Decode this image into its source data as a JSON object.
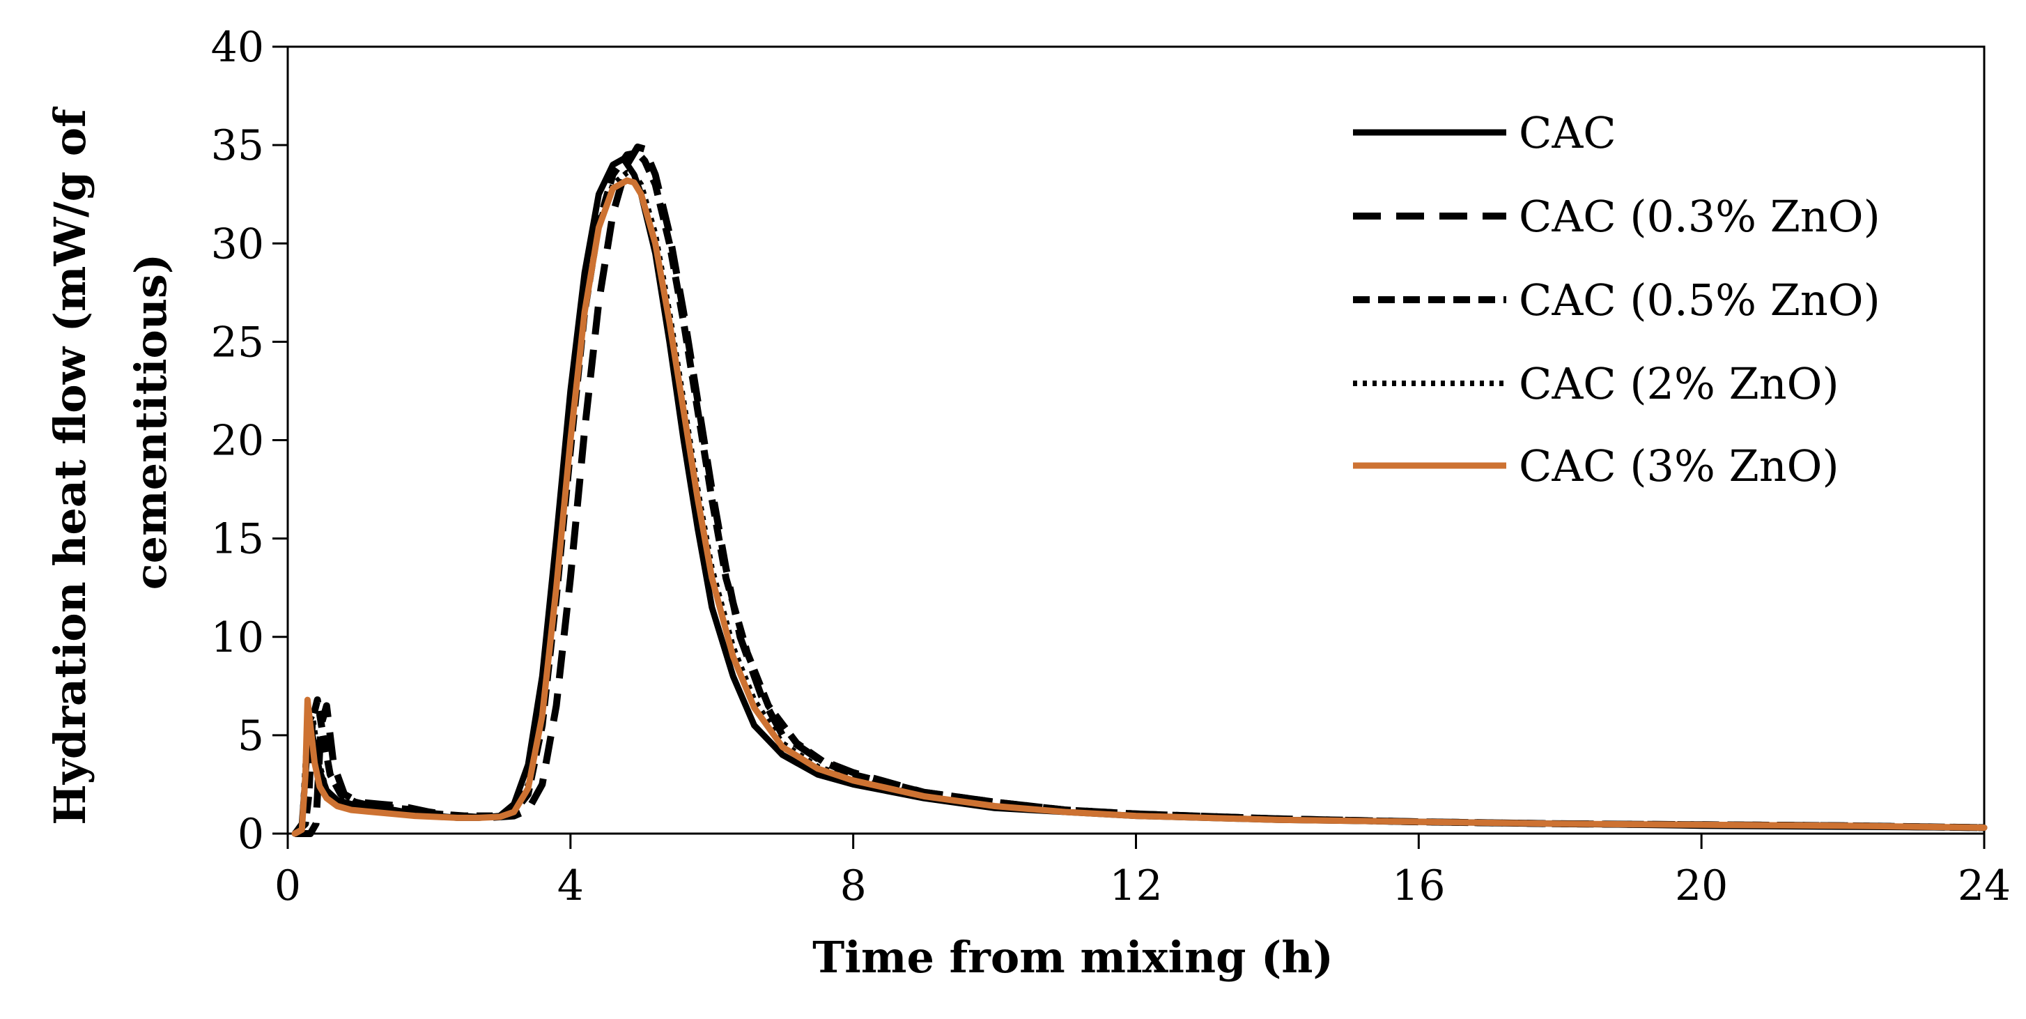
{
  "chart_data": {
    "type": "line",
    "title": "",
    "xlabel": "Time from mixing (h)",
    "ylabel_lines": [
      "Hydration heat flow (mW/g of",
      "cementitious)"
    ],
    "xlim": [
      0,
      24
    ],
    "ylim": [
      0,
      40
    ],
    "xticks": [
      "0",
      "4",
      "8",
      "12",
      "16",
      "20",
      "24"
    ],
    "yticks": [
      "0",
      "5",
      "10",
      "15",
      "20",
      "25",
      "30",
      "35",
      "40"
    ],
    "grid": false,
    "legend_position": "top-right",
    "series": [
      {
        "name": "CAC",
        "color": "#000000",
        "style": "solid",
        "x": [
          0.1,
          0.2,
          0.28,
          0.35,
          0.45,
          0.55,
          0.7,
          0.9,
          1.2,
          1.5,
          1.8,
          2.1,
          2.4,
          2.7,
          3.0,
          3.2,
          3.4,
          3.6,
          3.8,
          4.0,
          4.2,
          4.4,
          4.6,
          4.75,
          4.9,
          5.0,
          5.2,
          5.4,
          5.6,
          5.8,
          6.0,
          6.3,
          6.6,
          7.0,
          7.5,
          8.0,
          9.0,
          10,
          11,
          12,
          14,
          16,
          18,
          20,
          22,
          24
        ],
        "y": [
          0,
          0.5,
          4.3,
          5.0,
          3.2,
          2.2,
          1.7,
          1.5,
          1.3,
          1.2,
          1.0,
          0.9,
          0.8,
          0.8,
          0.9,
          1.5,
          3.5,
          8.0,
          15.0,
          22.5,
          28.5,
          32.5,
          34.0,
          34.3,
          33.5,
          32.5,
          29.5,
          25.0,
          20.0,
          15.5,
          11.5,
          8.0,
          5.5,
          4.0,
          3.0,
          2.5,
          1.8,
          1.3,
          1.1,
          0.9,
          0.7,
          0.6,
          0.5,
          0.4,
          0.35,
          0.3
        ]
      },
      {
        "name": "CAC (0.3% ZnO)",
        "color": "#000000",
        "style": "longdash",
        "x": [
          0.1,
          0.25,
          0.32,
          0.4,
          0.47,
          0.55,
          0.65,
          0.8,
          1.0,
          1.3,
          1.6,
          2.0,
          2.4,
          2.8,
          3.2,
          3.4,
          3.6,
          3.8,
          4.0,
          4.2,
          4.4,
          4.6,
          4.8,
          4.95,
          5.05,
          5.2,
          5.4,
          5.6,
          5.8,
          6.0,
          6.2,
          6.4,
          6.7,
          7.0,
          7.5,
          8.0,
          9.0,
          10,
          11,
          12,
          14,
          16,
          18,
          20,
          22,
          24
        ],
        "y": [
          0,
          0,
          0,
          0.5,
          5.5,
          6.5,
          3.5,
          2.0,
          1.6,
          1.5,
          1.4,
          1.1,
          0.9,
          0.8,
          0.9,
          1.2,
          2.5,
          6.5,
          13.0,
          20.5,
          27.0,
          31.5,
          34.0,
          34.9,
          34.8,
          33.5,
          30.5,
          26.5,
          22.0,
          17.5,
          13.5,
          10.0,
          7.0,
          5.0,
          3.8,
          3.1,
          2.1,
          1.6,
          1.2,
          1.0,
          0.75,
          0.6,
          0.5,
          0.45,
          0.4,
          0.3
        ]
      },
      {
        "name": "CAC (0.5% ZnO)",
        "color": "#000000",
        "style": "shortdash",
        "x": [
          0.1,
          0.25,
          0.3,
          0.35,
          0.42,
          0.5,
          0.6,
          0.75,
          0.95,
          1.2,
          1.5,
          1.8,
          2.1,
          2.5,
          2.9,
          3.2,
          3.4,
          3.6,
          3.8,
          4.0,
          4.2,
          4.4,
          4.6,
          4.8,
          4.95,
          5.05,
          5.2,
          5.4,
          5.6,
          5.8,
          6.0,
          6.2,
          6.5,
          6.8,
          7.2,
          7.6,
          8.0,
          9.0,
          10,
          11,
          12,
          14,
          16,
          18,
          20,
          22,
          24
        ],
        "y": [
          0,
          0.5,
          2.0,
          5.8,
          6.8,
          5.0,
          3.0,
          2.0,
          1.6,
          1.4,
          1.3,
          1.2,
          1.0,
          0.9,
          0.9,
          1.1,
          2.0,
          5.5,
          12.0,
          19.5,
          26.5,
          31.0,
          33.5,
          34.5,
          34.6,
          34.2,
          33.0,
          30.0,
          26.0,
          21.5,
          17.0,
          13.0,
          9.2,
          6.5,
          4.6,
          3.6,
          3.0,
          2.1,
          1.6,
          1.2,
          1.0,
          0.75,
          0.6,
          0.5,
          0.45,
          0.4,
          0.3
        ]
      },
      {
        "name": "CAC (2% ZnO)",
        "color": "#000000",
        "style": "dotted",
        "x": [
          0.1,
          0.2,
          0.28,
          0.35,
          0.45,
          0.55,
          0.7,
          0.9,
          1.2,
          1.5,
          1.8,
          2.1,
          2.4,
          2.7,
          3.0,
          3.2,
          3.4,
          3.6,
          3.8,
          4.0,
          4.2,
          4.4,
          4.6,
          4.8,
          4.9,
          5.0,
          5.2,
          5.4,
          5.6,
          5.8,
          6.0,
          6.3,
          6.6,
          7.0,
          7.5,
          8.0,
          9.0,
          10,
          11,
          12,
          14,
          16,
          18,
          20,
          22,
          24
        ],
        "y": [
          0,
          0.5,
          5.5,
          6.0,
          3.5,
          2.2,
          1.6,
          1.4,
          1.3,
          1.2,
          1.0,
          0.9,
          0.8,
          0.8,
          0.9,
          1.2,
          2.5,
          6.5,
          13.0,
          20.5,
          27.0,
          31.0,
          33.0,
          33.6,
          33.5,
          33.0,
          30.5,
          26.5,
          22.0,
          17.5,
          13.5,
          9.5,
          6.8,
          4.6,
          3.4,
          2.8,
          1.9,
          1.4,
          1.1,
          0.9,
          0.7,
          0.6,
          0.5,
          0.45,
          0.4,
          0.3
        ]
      },
      {
        "name": "CAC (3% ZnO)",
        "color": "#CD7232",
        "style": "solid",
        "x": [
          0.1,
          0.2,
          0.25,
          0.28,
          0.32,
          0.38,
          0.45,
          0.55,
          0.7,
          0.9,
          1.2,
          1.5,
          1.8,
          2.1,
          2.4,
          2.7,
          3.0,
          3.2,
          3.4,
          3.6,
          3.8,
          4.0,
          4.2,
          4.4,
          4.6,
          4.8,
          4.9,
          5.0,
          5.2,
          5.4,
          5.6,
          5.8,
          6.0,
          6.3,
          6.6,
          7.0,
          7.5,
          8.0,
          9.0,
          10,
          11,
          12,
          14,
          16,
          18,
          20,
          22,
          24
        ],
        "y": [
          0,
          0.2,
          3.0,
          6.8,
          5.5,
          3.6,
          2.4,
          1.8,
          1.4,
          1.2,
          1.1,
          1.0,
          0.9,
          0.85,
          0.8,
          0.8,
          0.85,
          1.1,
          2.3,
          6.0,
          12.5,
          20.0,
          26.5,
          30.8,
          32.8,
          33.2,
          33.1,
          32.5,
          30.0,
          26.0,
          21.5,
          17.0,
          13.0,
          9.0,
          6.4,
          4.4,
          3.3,
          2.7,
          1.9,
          1.4,
          1.1,
          0.9,
          0.7,
          0.6,
          0.5,
          0.45,
          0.4,
          0.3
        ]
      }
    ]
  }
}
